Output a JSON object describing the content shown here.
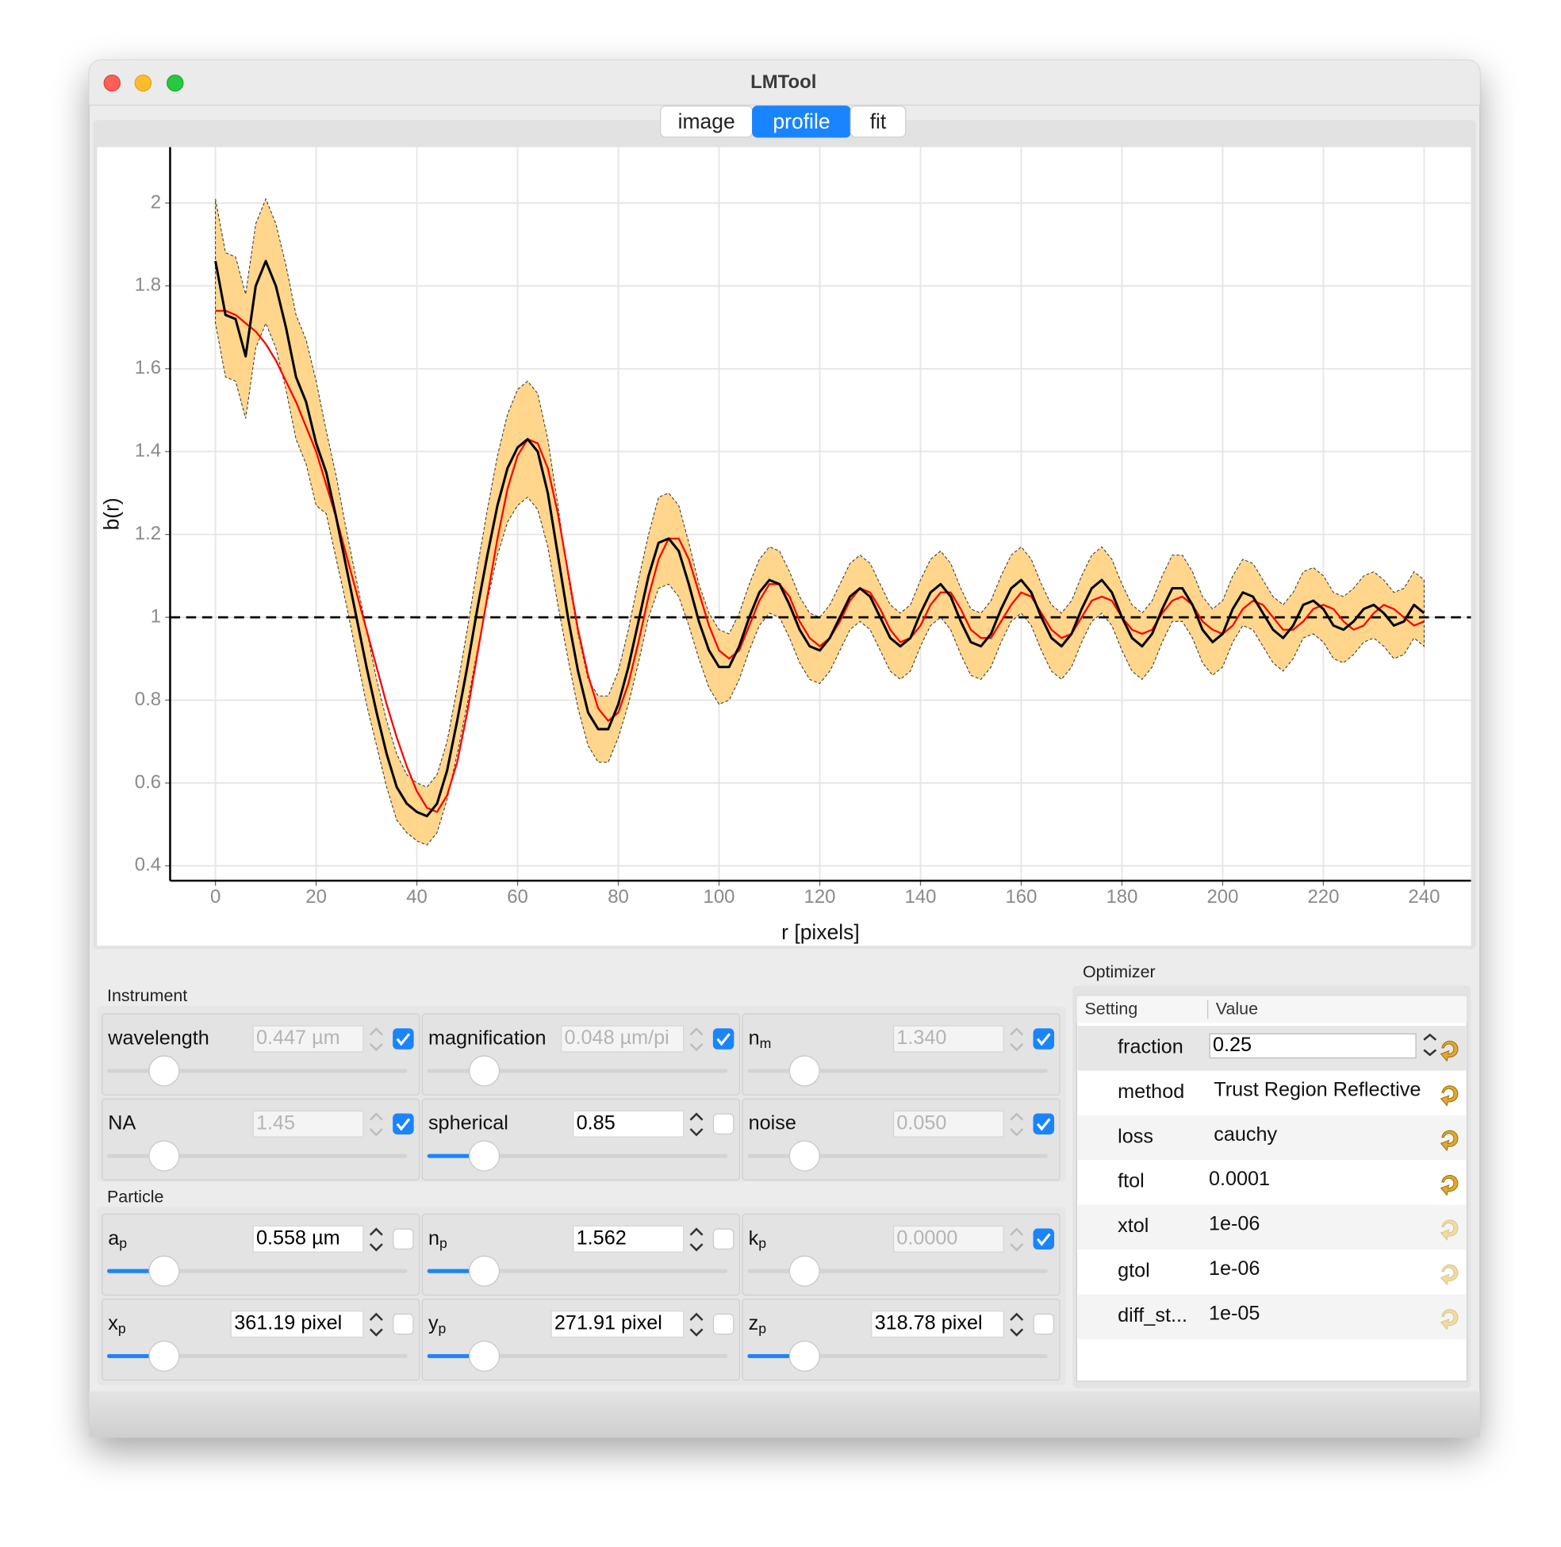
{
  "window": {
    "title": "LMTool",
    "tabs": [
      {
        "label": "image"
      },
      {
        "label": "profile",
        "selected": true
      },
      {
        "label": "fit"
      }
    ]
  },
  "chart_data": {
    "type": "line",
    "xlabel": "r [pixels]",
    "ylabel": "b(r)",
    "x": [
      0,
      2,
      4,
      6,
      8,
      10,
      12,
      14,
      16,
      18,
      20,
      22,
      24,
      26,
      28,
      30,
      32,
      34,
      36,
      38,
      40,
      42,
      44,
      46,
      48,
      50,
      52,
      54,
      56,
      58,
      60,
      62,
      64,
      66,
      68,
      70,
      72,
      74,
      76,
      78,
      80,
      82,
      84,
      86,
      88,
      90,
      92,
      94,
      96,
      98,
      100,
      102,
      104,
      106,
      108,
      110,
      112,
      114,
      116,
      118,
      120,
      122,
      124,
      126,
      128,
      130,
      132,
      134,
      136,
      138,
      140,
      142,
      144,
      146,
      148,
      150,
      152,
      154,
      156,
      158,
      160,
      162,
      164,
      166,
      168,
      170,
      172,
      174,
      176,
      178,
      180,
      182,
      184,
      186,
      188,
      190,
      192,
      194,
      196,
      198,
      200,
      202,
      204,
      206,
      208,
      210,
      212,
      214,
      216,
      218,
      220,
      222,
      224,
      226,
      228,
      230,
      232,
      234,
      236,
      238,
      240
    ],
    "series": [
      {
        "color": "#000000",
        "band_color": "#ffd27f",
        "values": [
          1.86,
          1.73,
          1.72,
          1.63,
          1.8,
          1.86,
          1.8,
          1.7,
          1.58,
          1.52,
          1.42,
          1.35,
          1.24,
          1.12,
          1.0,
          0.88,
          0.77,
          0.67,
          0.59,
          0.55,
          0.53,
          0.52,
          0.55,
          0.63,
          0.75,
          0.88,
          1.02,
          1.15,
          1.27,
          1.36,
          1.41,
          1.43,
          1.4,
          1.3,
          1.15,
          1.0,
          0.87,
          0.77,
          0.73,
          0.73,
          0.79,
          0.88,
          0.99,
          1.1,
          1.18,
          1.19,
          1.16,
          1.08,
          0.99,
          0.92,
          0.88,
          0.88,
          0.93,
          1.0,
          1.06,
          1.09,
          1.08,
          1.03,
          0.97,
          0.93,
          0.92,
          0.95,
          1.0,
          1.05,
          1.07,
          1.05,
          1.0,
          0.95,
          0.93,
          0.95,
          1.01,
          1.06,
          1.08,
          1.05,
          0.99,
          0.94,
          0.93,
          0.96,
          1.02,
          1.07,
          1.09,
          1.06,
          1.0,
          0.95,
          0.93,
          0.96,
          1.02,
          1.07,
          1.09,
          1.06,
          1.0,
          0.95,
          0.93,
          0.96,
          1.02,
          1.07,
          1.07,
          1.03,
          0.97,
          0.94,
          0.96,
          1.02,
          1.06,
          1.05,
          1.01,
          0.97,
          0.95,
          0.98,
          1.03,
          1.04,
          1.02,
          0.98,
          0.97,
          0.99,
          1.02,
          1.03,
          1.01,
          0.98,
          0.99,
          1.03,
          1.01
        ],
        "error": [
          0.15,
          0.15,
          0.15,
          0.15,
          0.15,
          0.15,
          0.15,
          0.15,
          0.15,
          0.15,
          0.15,
          0.1,
          0.1,
          0.09,
          0.09,
          0.09,
          0.08,
          0.08,
          0.08,
          0.07,
          0.07,
          0.07,
          0.07,
          0.07,
          0.08,
          0.09,
          0.1,
          0.11,
          0.12,
          0.13,
          0.14,
          0.14,
          0.14,
          0.13,
          0.12,
          0.1,
          0.09,
          0.08,
          0.08,
          0.08,
          0.08,
          0.09,
          0.1,
          0.1,
          0.11,
          0.11,
          0.11,
          0.1,
          0.09,
          0.09,
          0.09,
          0.08,
          0.08,
          0.08,
          0.08,
          0.08,
          0.08,
          0.08,
          0.08,
          0.08,
          0.08,
          0.08,
          0.08,
          0.08,
          0.08,
          0.08,
          0.08,
          0.08,
          0.08,
          0.08,
          0.08,
          0.08,
          0.08,
          0.08,
          0.08,
          0.08,
          0.08,
          0.08,
          0.08,
          0.08,
          0.08,
          0.08,
          0.08,
          0.08,
          0.08,
          0.08,
          0.08,
          0.08,
          0.08,
          0.08,
          0.08,
          0.08,
          0.08,
          0.08,
          0.08,
          0.08,
          0.08,
          0.08,
          0.08,
          0.08,
          0.08,
          0.08,
          0.08,
          0.08,
          0.08,
          0.08,
          0.08,
          0.08,
          0.08,
          0.08,
          0.08,
          0.08,
          0.08,
          0.08,
          0.08,
          0.08,
          0.08,
          0.08,
          0.08,
          0.08,
          0.08
        ]
      },
      {
        "color": "#ff0000",
        "values": [
          1.74,
          1.74,
          1.73,
          1.71,
          1.69,
          1.66,
          1.62,
          1.57,
          1.52,
          1.46,
          1.4,
          1.32,
          1.24,
          1.15,
          1.06,
          0.97,
          0.88,
          0.79,
          0.71,
          0.64,
          0.58,
          0.54,
          0.53,
          0.57,
          0.65,
          0.77,
          0.91,
          1.05,
          1.19,
          1.31,
          1.39,
          1.43,
          1.42,
          1.36,
          1.25,
          1.11,
          0.97,
          0.86,
          0.78,
          0.75,
          0.77,
          0.84,
          0.94,
          1.05,
          1.14,
          1.19,
          1.19,
          1.14,
          1.06,
          0.98,
          0.92,
          0.9,
          0.92,
          0.98,
          1.04,
          1.08,
          1.08,
          1.05,
          0.99,
          0.95,
          0.93,
          0.95,
          0.99,
          1.04,
          1.07,
          1.06,
          1.02,
          0.97,
          0.94,
          0.95,
          0.98,
          1.03,
          1.06,
          1.06,
          1.02,
          0.97,
          0.95,
          0.95,
          0.99,
          1.03,
          1.06,
          1.05,
          1.01,
          0.97,
          0.95,
          0.96,
          1.0,
          1.04,
          1.05,
          1.04,
          1.0,
          0.97,
          0.96,
          0.97,
          1.01,
          1.04,
          1.05,
          1.03,
          0.99,
          0.97,
          0.96,
          0.98,
          1.02,
          1.04,
          1.03,
          1.0,
          0.97,
          0.97,
          0.99,
          1.02,
          1.03,
          1.02,
          0.99,
          0.97,
          0.98,
          1.01,
          1.03,
          1.02,
          1.0,
          0.98,
          0.99
        ]
      }
    ],
    "hline": 1,
    "xlim": [
      -9,
      249.3
    ],
    "ylim": [
      0.364,
      2.135
    ],
    "xticks": [
      0,
      20,
      40,
      60,
      80,
      100,
      120,
      140,
      160,
      180,
      200,
      220,
      240
    ],
    "yticks": [
      0.4,
      0.6,
      0.8,
      1,
      1.2,
      1.4,
      1.6,
      1.8,
      2
    ],
    "grid": true
  },
  "instrument": {
    "title": "Instrument",
    "cells": [
      {
        "label": "wavelength",
        "value": "0.447 µm",
        "fixed": true
      },
      {
        "label": "magnification",
        "value": "0.048 µm/pi",
        "fixed": true
      },
      {
        "label": "n",
        "sub": "m",
        "value": "1.340",
        "fixed": true
      },
      {
        "label": "NA",
        "value": "1.45",
        "fixed": true
      },
      {
        "label": "spherical",
        "value": "0.85",
        "fixed": false
      },
      {
        "label": "noise",
        "value": "0.050",
        "fixed": true
      }
    ]
  },
  "particle": {
    "title": "Particle",
    "cells": [
      {
        "label": "a",
        "sub": "p",
        "value": "0.558 µm",
        "fixed": false
      },
      {
        "label": "n",
        "sub": "p",
        "value": "1.562",
        "fixed": false
      },
      {
        "label": "k",
        "sub": "p",
        "value": "0.0000",
        "fixed": true
      },
      {
        "label": "x",
        "sub": "p",
        "value": "361.19 pixel",
        "fixed": false
      },
      {
        "label": "y",
        "sub": "p",
        "value": "271.91 pixel",
        "fixed": false
      },
      {
        "label": "z",
        "sub": "p",
        "value": "318.78 pixel",
        "fixed": false
      }
    ]
  },
  "optimizer": {
    "title": "Optimizer",
    "headers": [
      "Setting",
      "Value"
    ],
    "rows": [
      {
        "setting": "fraction",
        "value": "0.25"
      },
      {
        "setting": "method",
        "value": "Trust Region Reflective"
      },
      {
        "setting": "loss",
        "value": "cauchy"
      },
      {
        "setting": "ftol",
        "value": "0.0001"
      },
      {
        "setting": "xtol",
        "value": "1e-06"
      },
      {
        "setting": "gtol",
        "value": "1e-06"
      },
      {
        "setting": "diff_st...",
        "value": "1e-05"
      }
    ]
  }
}
